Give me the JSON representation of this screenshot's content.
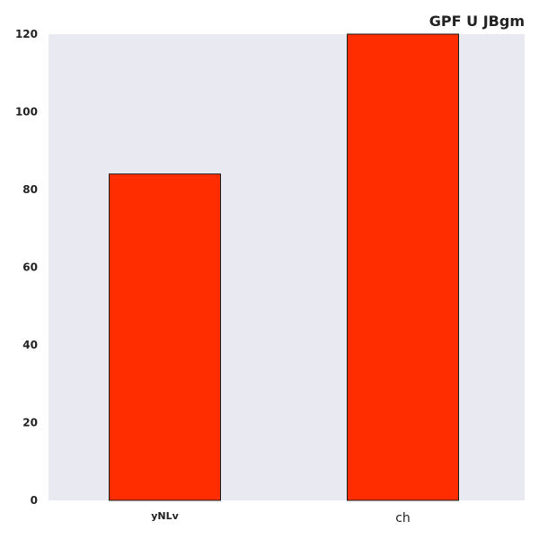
{
  "chart_data": {
    "type": "bar",
    "title": "GPF U JBgm",
    "categories": [
      "yNLv",
      "ch"
    ],
    "values": [
      84,
      120
    ],
    "xlabel": "",
    "ylabel": "",
    "ylim": [
      0,
      120
    ],
    "yticks": [
      0,
      20,
      40,
      60,
      80,
      100,
      120
    ],
    "grid": false,
    "legend": "none",
    "colors": {
      "plot_background": "#e9e9f2",
      "bar_fill": "#ff2d00",
      "bar_edge": "#1a1a1a",
      "text": "#222222"
    }
  }
}
